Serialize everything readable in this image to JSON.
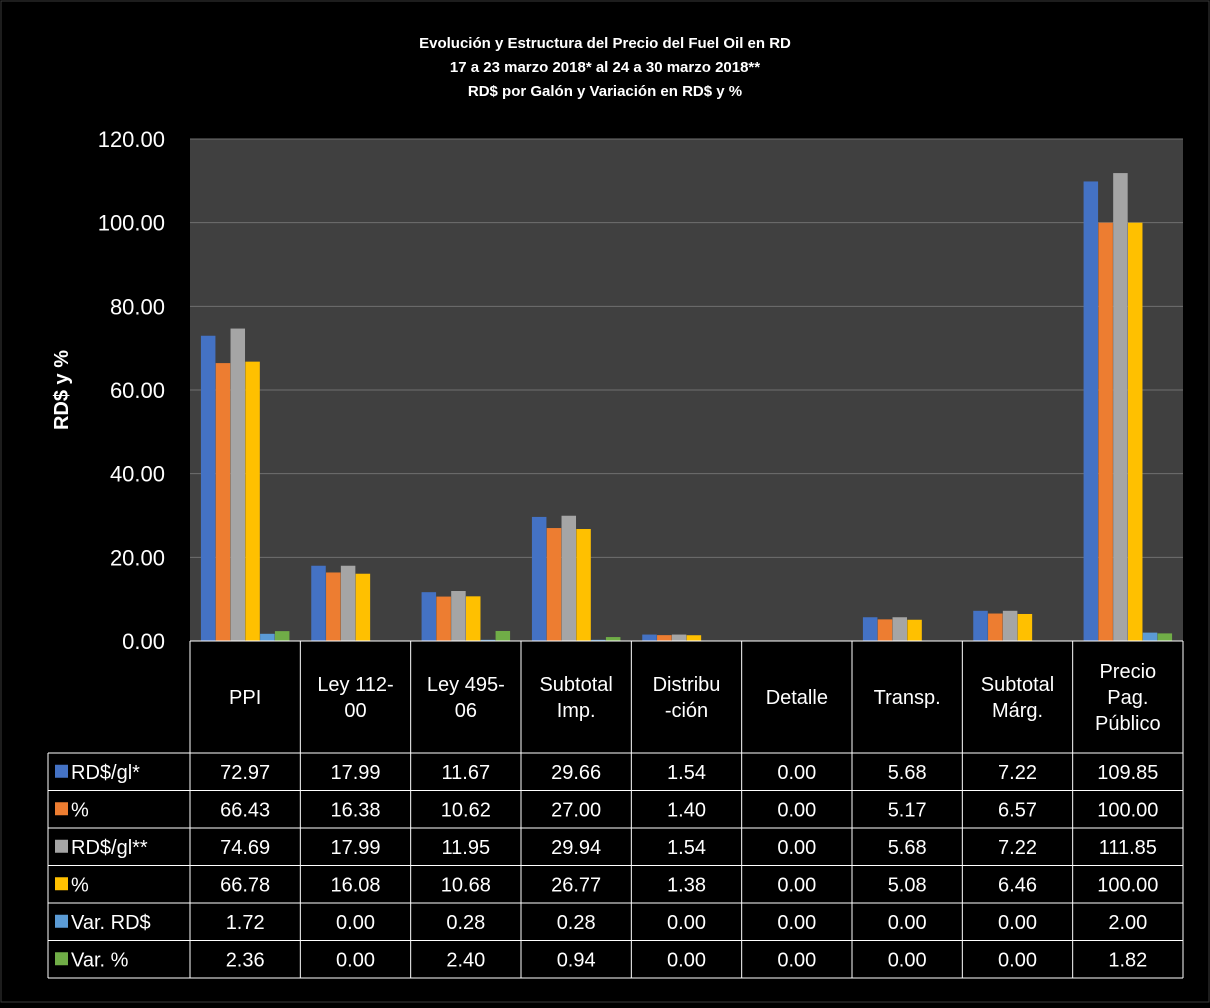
{
  "chart_data": {
    "type": "bar",
    "title_lines": [
      "Evolución y Estructura del Precio del Fuel Oil en RD",
      "17 a 23 marzo 2018* al 24 a 30 marzo 2018**",
      "RD$ por Galón y Variación en RD$ y %"
    ],
    "ylabel": "RD$ y %",
    "xlabel": "",
    "ylim": [
      0,
      120
    ],
    "yticks": [
      "0.00",
      "20.00",
      "40.00",
      "60.00",
      "80.00",
      "100.00",
      "120.00"
    ],
    "grid": true,
    "legend": "data-table",
    "categories": [
      [
        "PPI"
      ],
      [
        "Ley 112-",
        "00"
      ],
      [
        "Ley 495-",
        "06"
      ],
      [
        "Subtotal",
        "Imp."
      ],
      [
        "Distribu",
        "-ción"
      ],
      [
        "Detalle"
      ],
      [
        "Transp."
      ],
      [
        "Subtotal",
        "Márg."
      ],
      [
        "Precio",
        "Pag.",
        "Público"
      ]
    ],
    "series": [
      {
        "name": "RD$/gl*",
        "color": "#4472C4",
        "values": [
          72.97,
          17.99,
          11.67,
          29.66,
          1.54,
          0.0,
          5.68,
          7.22,
          109.85
        ],
        "labels": [
          "72.97",
          "17.99",
          "11.67",
          "29.66",
          "1.54",
          "0.00",
          "5.68",
          "7.22",
          "109.85"
        ]
      },
      {
        "name": "%",
        "color": "#ED7D31",
        "values": [
          66.43,
          16.38,
          10.62,
          27.0,
          1.4,
          0.0,
          5.17,
          6.57,
          100.0
        ],
        "labels": [
          "66.43",
          "16.38",
          "10.62",
          "27.00",
          "1.40",
          "0.00",
          "5.17",
          "6.57",
          "100.00"
        ]
      },
      {
        "name": "RD$/gl**",
        "color": "#A5A5A5",
        "values": [
          74.69,
          17.99,
          11.95,
          29.94,
          1.54,
          0.0,
          5.68,
          7.22,
          111.85
        ],
        "labels": [
          "74.69",
          "17.99",
          "11.95",
          "29.94",
          "1.54",
          "0.00",
          "5.68",
          "7.22",
          "111.85"
        ]
      },
      {
        "name": "%",
        "color": "#FFC000",
        "values": [
          66.78,
          16.08,
          10.68,
          26.77,
          1.38,
          0.0,
          5.08,
          6.46,
          100.0
        ],
        "labels": [
          "66.78",
          "16.08",
          "10.68",
          "26.77",
          "1.38",
          "0.00",
          "5.08",
          "6.46",
          "100.00"
        ]
      },
      {
        "name": "Var. RD$",
        "color": "#5B9BD5",
        "values": [
          1.72,
          0.0,
          0.28,
          0.28,
          0.0,
          0.0,
          0.0,
          0.0,
          2.0
        ],
        "labels": [
          "1.72",
          "0.00",
          "0.28",
          "0.28",
          "0.00",
          "0.00",
          "0.00",
          "0.00",
          "2.00"
        ]
      },
      {
        "name": "Var. %",
        "color": "#70AD47",
        "values": [
          2.36,
          0.0,
          2.4,
          0.94,
          0.0,
          0.0,
          0.0,
          0.0,
          1.82
        ],
        "labels": [
          "2.36",
          "0.00",
          "2.40",
          "0.94",
          "0.00",
          "0.00",
          "0.00",
          "0.00",
          "1.82"
        ]
      }
    ]
  }
}
